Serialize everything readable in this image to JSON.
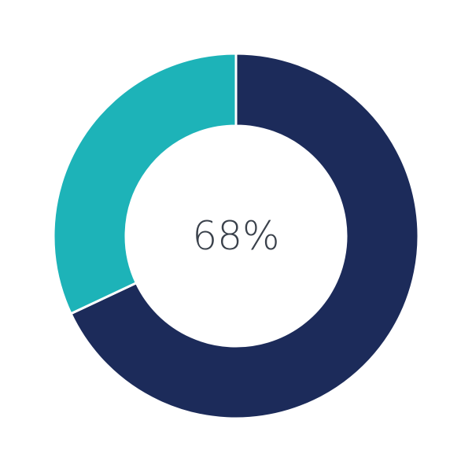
{
  "chart_data": {
    "type": "pie",
    "donut": true,
    "center_label": "68%",
    "slices": [
      {
        "value": 68,
        "color": "#1c2b5a"
      },
      {
        "value": 32,
        "color": "#1db3b8"
      }
    ],
    "start_angle": "top",
    "direction": "clockwise"
  }
}
